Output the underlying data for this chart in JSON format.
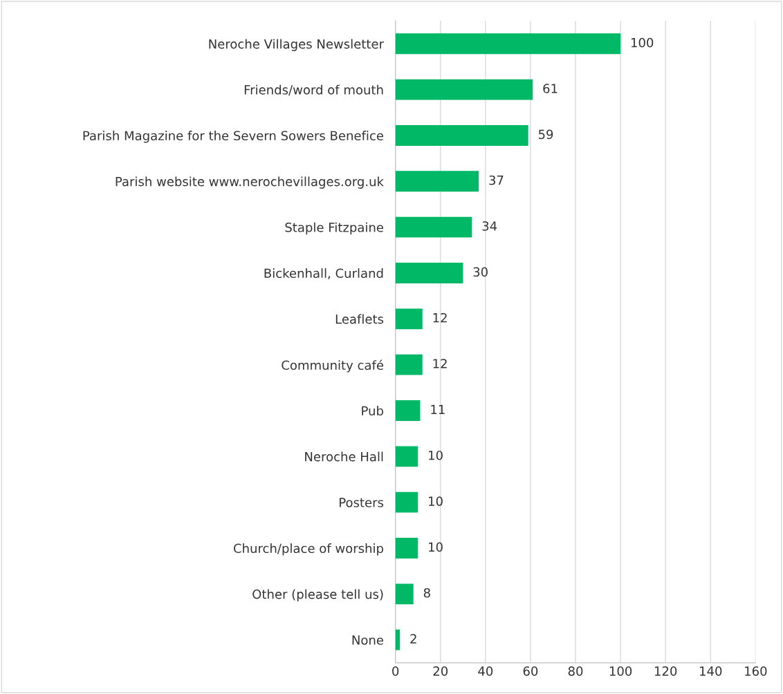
{
  "chart_data": {
    "type": "bar",
    "orientation": "horizontal",
    "categories": [
      "Neroche Villages Newsletter",
      "Friends/word of mouth",
      "Parish Magazine for the Severn Sowers Benefice",
      "Parish website www.nerochevillages.org.uk",
      "Staple Fitzpaine",
      "Bickenhall, Curland",
      "Leaflets",
      "Community café",
      "Pub",
      "Neroche Hall",
      "Posters",
      "Church/place of worship",
      "Other (please tell us)",
      "None"
    ],
    "values": [
      100,
      61,
      59,
      37,
      34,
      30,
      12,
      12,
      11,
      10,
      10,
      10,
      8,
      2
    ],
    "color": "#00b865",
    "xlim": [
      0,
      160
    ],
    "xticks": [
      0,
      20,
      40,
      60,
      80,
      100,
      120,
      140,
      160
    ],
    "grid": "x",
    "data_labels": true
  }
}
